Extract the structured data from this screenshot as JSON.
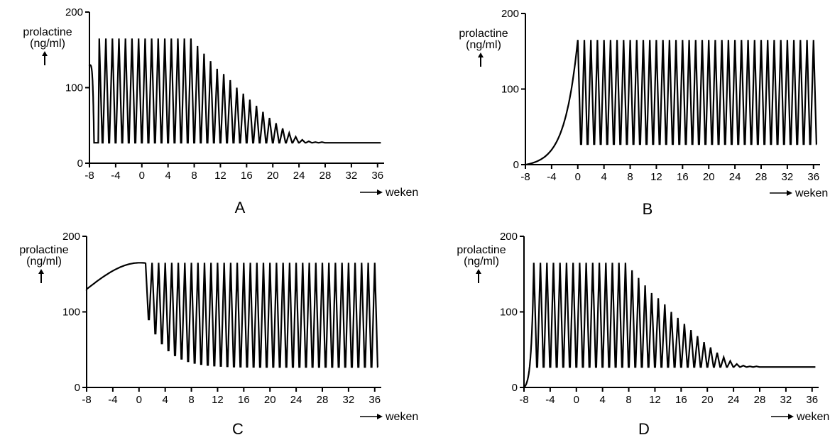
{
  "chart_data": [
    {
      "type": "line",
      "panel": "A",
      "ylabel": "prolactine\n(ng/ml)",
      "xlabel": "weken",
      "xlim": [
        -8,
        37
      ],
      "ylim": [
        0,
        200
      ],
      "xticks": [
        -8,
        -4,
        0,
        4,
        8,
        12,
        16,
        20,
        24,
        28,
        32,
        36
      ],
      "yticks": [
        0,
        100,
        200
      ],
      "baseline": 27,
      "prelude": {
        "kind": "plateau-drop",
        "from_x": -8,
        "to_x": -7.3,
        "level": 130
      },
      "pulses": {
        "start": -6.5,
        "period": 1.0,
        "count": 38
      },
      "peaks": [
        165,
        165,
        165,
        165,
        165,
        165,
        165,
        165,
        165,
        165,
        165,
        165,
        165,
        165,
        165,
        155,
        145,
        135,
        125,
        118,
        110,
        100,
        92,
        84,
        76,
        68,
        60,
        53,
        46,
        40,
        35,
        31,
        29,
        28,
        28,
        27,
        27,
        27
      ],
      "tail_to": 36.5
    },
    {
      "type": "line",
      "panel": "B",
      "ylabel": "prolactine\n(ng/ml)",
      "xlabel": "weken",
      "xlim": [
        -8,
        37
      ],
      "ylim": [
        0,
        200
      ],
      "xticks": [
        -8,
        -4,
        0,
        4,
        8,
        12,
        16,
        20,
        24,
        28,
        32,
        36
      ],
      "yticks": [
        0,
        100,
        200
      ],
      "baseline": 27,
      "prelude": {
        "kind": "exp-rise",
        "from_x": -8,
        "to_x": 0,
        "start": 0,
        "end": 165
      },
      "pulses": {
        "start": 0,
        "period": 1.0,
        "count": 37
      },
      "peaks": [
        165,
        165,
        165,
        165,
        165,
        165,
        165,
        165,
        165,
        165,
        165,
        165,
        165,
        165,
        165,
        165,
        165,
        165,
        165,
        165,
        165,
        165,
        165,
        165,
        165,
        165,
        165,
        165,
        165,
        165,
        165,
        165,
        165,
        165,
        165,
        165,
        165
      ],
      "tail_to": 36.5
    },
    {
      "type": "line",
      "panel": "C",
      "ylabel": "prolactine\n(ng/ml)",
      "xlabel": "weken",
      "xlim": [
        -8,
        37
      ],
      "ylim": [
        0,
        200
      ],
      "xticks": [
        -8,
        -4,
        0,
        4,
        8,
        12,
        16,
        20,
        24,
        28,
        32,
        36
      ],
      "yticks": [
        0,
        100,
        200
      ],
      "baseline": 27,
      "prelude": {
        "kind": "hump",
        "from_x": -8,
        "to_x": 1.0,
        "start": 130,
        "end": 165
      },
      "pulses": {
        "start": 1.0,
        "period": 1.0,
        "count": 36
      },
      "peaks": [
        165,
        165,
        165,
        165,
        165,
        165,
        165,
        165,
        165,
        165,
        165,
        165,
        165,
        165,
        165,
        165,
        165,
        165,
        165,
        165,
        165,
        165,
        165,
        165,
        165,
        165,
        165,
        165,
        165,
        165,
        165,
        165,
        165,
        165,
        165,
        165
      ],
      "troughs_decay": {
        "first": 90,
        "floor": 27,
        "rate": 0.16
      },
      "tail_to": 36.5
    },
    {
      "type": "line",
      "panel": "D",
      "ylabel": "prolactine\n(ng/ml)",
      "xlabel": "weken",
      "xlim": [
        -8,
        37
      ],
      "ylim": [
        0,
        200
      ],
      "xticks": [
        -8,
        -4,
        0,
        4,
        8,
        12,
        16,
        20,
        24,
        28,
        32,
        36
      ],
      "yticks": [
        0,
        100,
        200
      ],
      "baseline": 27,
      "prelude": {
        "kind": "exp-rise",
        "from_x": -8,
        "to_x": -6.5,
        "start": 0,
        "end": 165
      },
      "pulses": {
        "start": -6.5,
        "period": 1.0,
        "count": 38
      },
      "peaks": [
        165,
        165,
        165,
        165,
        165,
        165,
        165,
        165,
        165,
        165,
        165,
        165,
        165,
        165,
        165,
        155,
        145,
        135,
        125,
        118,
        110,
        100,
        92,
        84,
        76,
        68,
        60,
        53,
        46,
        40,
        35,
        31,
        29,
        28,
        28,
        27,
        27,
        27
      ],
      "tail_to": 36.5
    }
  ]
}
